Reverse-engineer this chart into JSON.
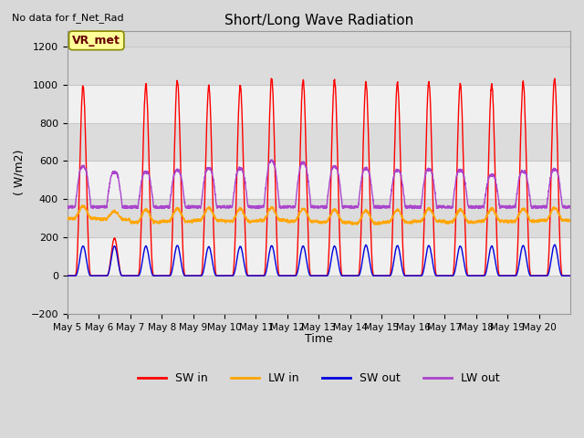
{
  "title": "Short/Long Wave Radiation",
  "subtitle": "No data for f_Net_Rad",
  "xlabel": "Time",
  "ylabel": "( W/m2)",
  "ylim": [
    -200,
    1280
  ],
  "yticks": [
    -200,
    0,
    200,
    400,
    600,
    800,
    1000,
    1200
  ],
  "x_labels": [
    "May 5",
    "May 6",
    "May 7",
    "May 8",
    "May 9",
    "May 10",
    "May 11",
    "May 12",
    "May 13",
    "May 14",
    "May 15",
    "May 16",
    "May 17",
    "May 18",
    "May 19",
    "May 20"
  ],
  "n_days": 16,
  "pts_per_day": 144,
  "annotation_box": "VR_met",
  "colors": {
    "SW_in": "#FF0000",
    "LW_in": "#FFA500",
    "SW_out": "#0000DD",
    "LW_out": "#AA44CC"
  },
  "band_colors": [
    "#DCDCDC",
    "#F0F0F0"
  ],
  "grid_line_color": "#C8C8C8",
  "bg_color": "#D8D8D8",
  "linewidth": 1.0,
  "sw_in_peaks": [
    990,
    195,
    1000,
    1020,
    990,
    990,
    1030,
    1020,
    1020,
    1010,
    1010,
    1010,
    1000,
    1000,
    1010,
    1030
  ],
  "lw_in_bases": [
    300,
    295,
    280,
    285,
    290,
    285,
    290,
    285,
    280,
    275,
    280,
    285,
    280,
    285,
    285,
    290
  ],
  "sw_out_peaks": [
    155,
    155,
    155,
    158,
    152,
    153,
    158,
    155,
    155,
    160,
    158,
    158,
    155,
    155,
    158,
    162
  ],
  "lw_out_peaks": [
    600,
    570,
    570,
    580,
    590,
    590,
    630,
    620,
    600,
    590,
    580,
    585,
    580,
    555,
    575,
    585
  ]
}
